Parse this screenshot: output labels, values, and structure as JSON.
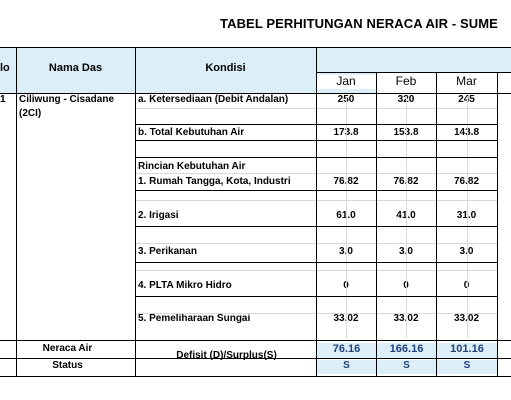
{
  "title": "TABEL PERHITUNGAN NERACA AIR - SUME",
  "headers": {
    "no": "lo",
    "nama_das": "Nama Das",
    "kondisi": "Kondisi",
    "months": [
      "Jan",
      "Feb",
      "Mar"
    ]
  },
  "row_no": "1",
  "das_name_line1": "Ciliwung - Cisadane",
  "das_name_line2": "(2CI)",
  "rows": [
    {
      "label": "a. Ketersediaan (Debit Andalan)",
      "values": [
        "250",
        "320",
        "245"
      ]
    },
    {
      "label": "b. Total Kebutuhan Air",
      "values": [
        "173.8",
        "153.8",
        "143.8"
      ]
    },
    {
      "label": "Rincian Kebutuhan Air",
      "values": [
        "",
        "",
        ""
      ]
    },
    {
      "label": "1. Rumah Tangga, Kota, Industri",
      "values": [
        "76.82",
        "76.82",
        "76.82"
      ]
    },
    {
      "label": "2. Irigasi",
      "values": [
        "61.0",
        "41.0",
        "31.0"
      ]
    },
    {
      "label": "3. Perikanan",
      "values": [
        "3.0",
        "3.0",
        "3.0"
      ]
    },
    {
      "label": "4. PLTA Mikro Hidro",
      "values": [
        "0",
        "0",
        "0"
      ]
    },
    {
      "label": "5. Pemeliharaan Sungai",
      "values": [
        "33.02",
        "33.02",
        "33.02"
      ]
    }
  ],
  "footer": {
    "neraca_label": "Neraca Air",
    "status_label": "Status",
    "defisit_label": "Defisit (D)/Surplus(S)",
    "neraca_values": [
      "76.16",
      "166.16",
      "101.16"
    ],
    "status_values": [
      "S",
      "S",
      "S"
    ]
  },
  "colors": {
    "header_fill": "#dceef7",
    "grid": "#d9d9d9",
    "border": "#000000"
  }
}
